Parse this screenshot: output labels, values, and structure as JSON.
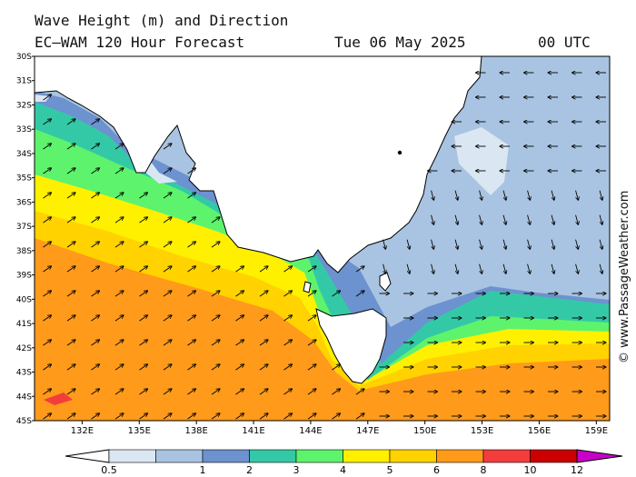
{
  "header": {
    "title_line1": "Wave Height (m) and Direction",
    "title_line2": "EC—WAM 120 Hour Forecast",
    "date": "Tue 06 May 2025",
    "time": "00 UTC"
  },
  "credit": "© www.PassageWeather.com",
  "map": {
    "lat_range": [
      -30,
      -45
    ],
    "lon_range": [
      129.5,
      159.7
    ],
    "lat_labels": [
      "30S",
      "31S",
      "32S",
      "33S",
      "34S",
      "35S",
      "36S",
      "37S",
      "38S",
      "39S",
      "40S",
      "41S",
      "42S",
      "43S",
      "44S",
      "45S"
    ],
    "lon_labels": [
      "132E",
      "135E",
      "138E",
      "141E",
      "144E",
      "147E",
      "150E",
      "153E",
      "156E",
      "159E"
    ],
    "lon_values": [
      132,
      135,
      138,
      141,
      144,
      147,
      150,
      153,
      156,
      159
    ],
    "colors": {
      "land": "#ffffff",
      "b05": "#dbe6f3",
      "b1": "#a9c4e2",
      "b2": "#6c92cf",
      "b3": "#34c9a6",
      "b4": "#5ef36c",
      "b5": "#fff000",
      "b6": "#ffd200",
      "b7": "#ff9a1a",
      "b8": "#f33d3d",
      "b10": "#cc0000",
      "b12": "#c800c8"
    },
    "wave_direction_regions": [
      {
        "area": "west (Southern Ocean)",
        "direction_to": "NE"
      },
      {
        "area": "east Tasman Sea north",
        "direction_to": "W"
      },
      {
        "area": "east Tasman Sea central",
        "direction_to": "S/SE"
      },
      {
        "area": "south-east of Tasmania",
        "direction_to": "E"
      }
    ]
  },
  "colorbar": {
    "labels": [
      "0.5",
      "1",
      "2",
      "3",
      "4",
      "5",
      "6",
      "8",
      "10",
      "12"
    ],
    "colors": [
      "#dbe6f3",
      "#a9c4e2",
      "#6c92cf",
      "#34c9a6",
      "#5ef36c",
      "#fff000",
      "#ffd200",
      "#ff9a1a",
      "#f33d3d",
      "#cc0000"
    ],
    "overflow_color": "#c800c8",
    "underflow_color": "#ffffff"
  }
}
